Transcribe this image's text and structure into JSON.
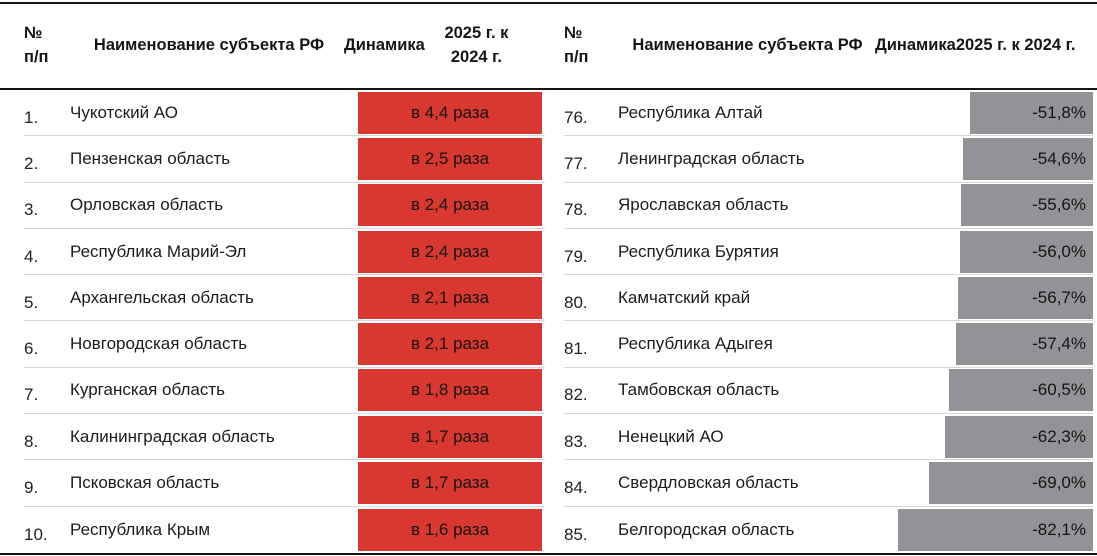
{
  "header": {
    "num_line1": "№",
    "num_line2": "п/п",
    "name": "Наименование субъекта РФ",
    "dyn_line1": "Динамика",
    "dyn_line2": "2025 г. к 2024 г."
  },
  "colors": {
    "increase_bar": "#d93830",
    "decrease_bar": "#919396"
  },
  "chart_data": {
    "type": "table",
    "tables": [
      {
        "id": "top-regions-growth",
        "columns": [
          "№ п/п",
          "Наименование субъекта РФ",
          "Динамика 2025 г. к 2024 г."
        ],
        "bar_style": "increase",
        "rows": [
          {
            "num": "1.",
            "name": "Чукотский АО",
            "value": "в 4,4 раза",
            "bar_pct": 100
          },
          {
            "num": "2.",
            "name": "Пензенская область",
            "value": "в 2,5 раза",
            "bar_pct": 100
          },
          {
            "num": "3.",
            "name": "Орловская область",
            "value": "в 2,4 раза",
            "bar_pct": 100
          },
          {
            "num": "4.",
            "name": "Республика Марий-Эл",
            "value": "в 2,4 раза",
            "bar_pct": 100
          },
          {
            "num": "5.",
            "name": "Архангельская область",
            "value": "в 2,1 раза",
            "bar_pct": 100
          },
          {
            "num": "6.",
            "name": "Новгородская область",
            "value": "в 2,1 раза",
            "bar_pct": 100
          },
          {
            "num": "7.",
            "name": "Курганская область",
            "value": "в 1,8 раза",
            "bar_pct": 100
          },
          {
            "num": "8.",
            "name": "Калининградская область",
            "value": "в 1,7 раза",
            "bar_pct": 100
          },
          {
            "num": "9.",
            "name": "Псковская область",
            "value": "в 1,7 раза",
            "bar_pct": 100
          },
          {
            "num": "10.",
            "name": "Республика Крым",
            "value": "в 1,6 раза",
            "bar_pct": 100
          }
        ]
      },
      {
        "id": "bottom-regions-decline",
        "columns": [
          "№ п/п",
          "Наименование субъекта РФ",
          "Динамика 2025 г. к 2024 г."
        ],
        "bar_style": "decrease",
        "rows": [
          {
            "num": "76.",
            "name": "Республика Алтай",
            "value": "-51,8%",
            "bar_pct": 51.8
          },
          {
            "num": "77.",
            "name": "Ленинградская область",
            "value": "-54,6%",
            "bar_pct": 54.6
          },
          {
            "num": "78.",
            "name": "Ярославская область",
            "value": "-55,6%",
            "bar_pct": 55.6
          },
          {
            "num": "79.",
            "name": "Республика Бурятия",
            "value": "-56,0%",
            "bar_pct": 56.0
          },
          {
            "num": "80.",
            "name": "Камчатский край",
            "value": "-56,7%",
            "bar_pct": 56.7
          },
          {
            "num": "81.",
            "name": "Республика Адыгея",
            "value": "-57,4%",
            "bar_pct": 57.4
          },
          {
            "num": "82.",
            "name": "Тамбовская область",
            "value": "-60,5%",
            "bar_pct": 60.5
          },
          {
            "num": "83.",
            "name": "Ненецкий АО",
            "value": "-62,3%",
            "bar_pct": 62.3
          },
          {
            "num": "84.",
            "name": "Свердловская область",
            "value": "-69,0%",
            "bar_pct": 69.0
          },
          {
            "num": "85.",
            "name": "Белгородская область",
            "value": "-82,1%",
            "bar_pct": 82.1
          }
        ]
      }
    ]
  }
}
